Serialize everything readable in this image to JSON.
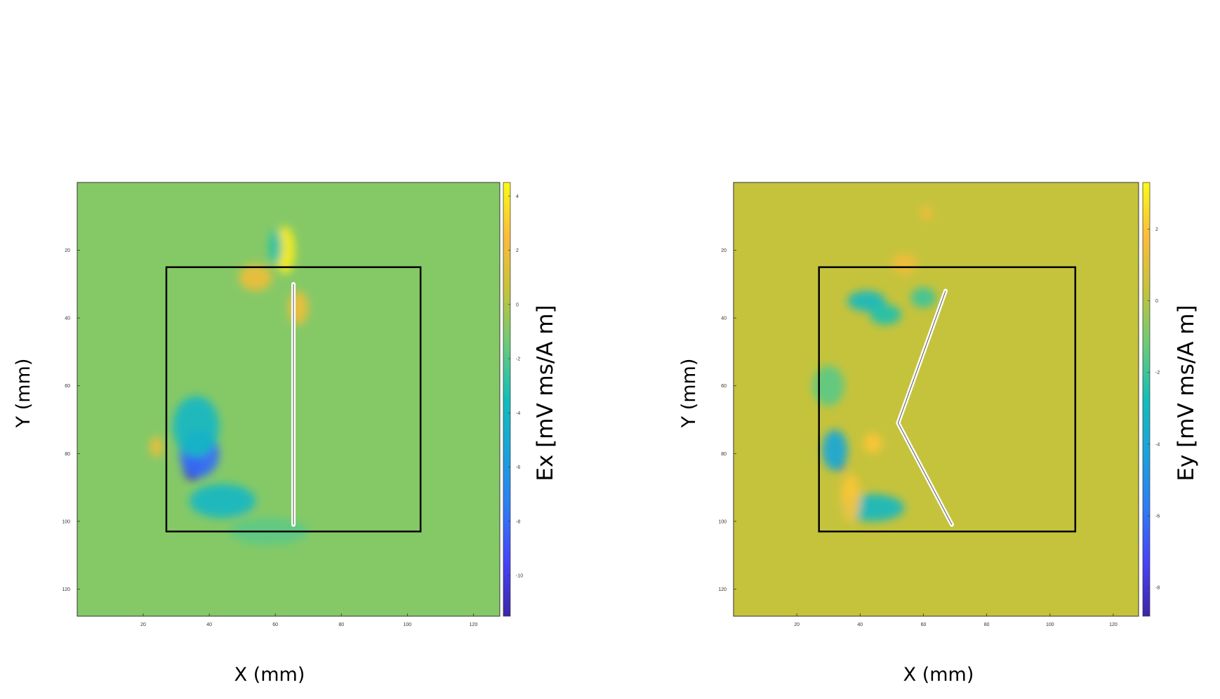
{
  "chart_data": [
    {
      "type": "heatmap",
      "xlabel": "X (mm)",
      "ylabel": "Y (mm)",
      "colorbar_label": "Ex [mV ms/A m]",
      "xlim": [
        0,
        128
      ],
      "ylim": [
        128,
        0
      ],
      "x_ticks": [
        "20",
        "40",
        "60",
        "80",
        "100",
        "120"
      ],
      "y_ticks": [
        "20",
        "40",
        "60",
        "80",
        "100",
        "120"
      ],
      "colorbar_range": [
        -11.5,
        4.5
      ],
      "colorbar_ticks": [
        "4",
        "2",
        "0",
        "-2",
        "-4",
        "-6",
        "-8",
        "-10"
      ],
      "background_value": -0.9,
      "roi_box": {
        "x": [
          27,
          104
        ],
        "y": [
          25,
          103
        ]
      },
      "lead_path": [
        [
          65.5,
          30
        ],
        [
          65.5,
          65
        ],
        [
          65.5,
          101
        ]
      ],
      "features": [
        {
          "x": 35,
          "y": 84,
          "value": -11,
          "rx": 3,
          "ry": 4
        },
        {
          "x": 37,
          "y": 80,
          "value": -8,
          "rx": 6,
          "ry": 7
        },
        {
          "x": 36,
          "y": 72,
          "value": -4,
          "rx": 7,
          "ry": 9
        },
        {
          "x": 44,
          "y": 94,
          "value": -4,
          "rx": 10,
          "ry": 5
        },
        {
          "x": 63,
          "y": 20,
          "value": 4,
          "rx": 3,
          "ry": 7
        },
        {
          "x": 54,
          "y": 28,
          "value": 2,
          "rx": 5,
          "ry": 4
        },
        {
          "x": 67,
          "y": 37,
          "value": 2,
          "rx": 3,
          "ry": 5
        },
        {
          "x": 60,
          "y": 19,
          "value": -3,
          "rx": 2,
          "ry": 5
        },
        {
          "x": 24,
          "y": 78,
          "value": 2,
          "rx": 2,
          "ry": 3
        },
        {
          "x": 58,
          "y": 103,
          "value": -1.8,
          "rx": 12,
          "ry": 4
        }
      ]
    },
    {
      "type": "heatmap",
      "xlabel": "X (mm)",
      "ylabel": "Y (mm)",
      "colorbar_label": "Ey [mV ms/A m]",
      "xlim": [
        0,
        128
      ],
      "ylim": [
        128,
        0
      ],
      "x_ticks": [
        "20",
        "40",
        "60",
        "80",
        "100",
        "120"
      ],
      "y_ticks": [
        "20",
        "40",
        "60",
        "80",
        "100",
        "120"
      ],
      "colorbar_range": [
        -8.8,
        3.3
      ],
      "colorbar_ticks": [
        "2",
        "0",
        "-2",
        "-4",
        "-6",
        "-8"
      ],
      "background_value": 0.3,
      "roi_box": {
        "x": [
          27,
          108
        ],
        "y": [
          25,
          103
        ]
      },
      "lead_path": [
        [
          67,
          32
        ],
        [
          52,
          71
        ],
        [
          69,
          101
        ]
      ],
      "features": [
        {
          "x": 34,
          "y": 84,
          "value": -8.5,
          "rx": 1,
          "ry": 1
        },
        {
          "x": 32,
          "y": 79,
          "value": -4,
          "rx": 4,
          "ry": 6
        },
        {
          "x": 44,
          "y": 96,
          "value": -3,
          "rx": 10,
          "ry": 4
        },
        {
          "x": 37,
          "y": 93,
          "value": 2,
          "rx": 3,
          "ry": 7
        },
        {
          "x": 42,
          "y": 35,
          "value": -3,
          "rx": 6,
          "ry": 3
        },
        {
          "x": 48,
          "y": 39,
          "value": -2.5,
          "rx": 5,
          "ry": 3
        },
        {
          "x": 60,
          "y": 34,
          "value": -2,
          "rx": 4,
          "ry": 3
        },
        {
          "x": 44,
          "y": 77,
          "value": 2,
          "rx": 3,
          "ry": 3
        },
        {
          "x": 54,
          "y": 24,
          "value": 1.5,
          "rx": 4,
          "ry": 3
        },
        {
          "x": 61,
          "y": 9,
          "value": 1.5,
          "rx": 2,
          "ry": 2
        },
        {
          "x": 30,
          "y": 60,
          "value": -1.5,
          "rx": 5,
          "ry": 6
        }
      ]
    }
  ]
}
